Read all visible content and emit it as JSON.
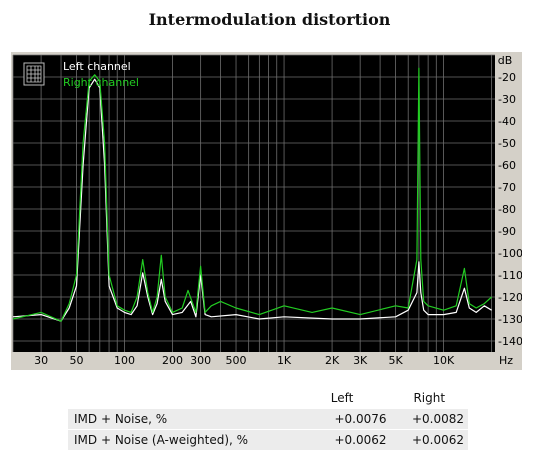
{
  "title": "Intermodulation distortion",
  "chart_data": {
    "type": "line",
    "title": "Intermodulation distortion",
    "xlabel": "Hz",
    "ylabel": "dB",
    "x_scale": "log",
    "xlim": [
      20,
      21000
    ],
    "ylim": [
      -145,
      -10
    ],
    "x_ticks": [
      {
        "value": 30,
        "label": "30"
      },
      {
        "value": 50,
        "label": "50"
      },
      {
        "value": 100,
        "label": "100"
      },
      {
        "value": 200,
        "label": "200"
      },
      {
        "value": 300,
        "label": "300"
      },
      {
        "value": 500,
        "label": "500"
      },
      {
        "value": 1000,
        "label": "1K"
      },
      {
        "value": 2000,
        "label": "2K"
      },
      {
        "value": 3000,
        "label": "3K"
      },
      {
        "value": 5000,
        "label": "5K"
      },
      {
        "value": 10000,
        "label": "10K"
      }
    ],
    "y_ticks": [
      -20,
      -30,
      -40,
      -50,
      -60,
      -70,
      -80,
      -90,
      -100,
      -110,
      -120,
      -130,
      -140
    ],
    "grid": true,
    "legend_position": "top-left",
    "series": [
      {
        "name": "Left channel",
        "color": "#ffffff",
        "points": [
          [
            20,
            -129
          ],
          [
            30,
            -128
          ],
          [
            40,
            -131
          ],
          [
            45,
            -125
          ],
          [
            50,
            -115
          ],
          [
            55,
            -60
          ],
          [
            60,
            -25
          ],
          [
            65,
            -21
          ],
          [
            70,
            -25
          ],
          [
            75,
            -60
          ],
          [
            80,
            -115
          ],
          [
            90,
            -125
          ],
          [
            100,
            -127
          ],
          [
            110,
            -128
          ],
          [
            120,
            -124
          ],
          [
            130,
            -109
          ],
          [
            140,
            -120
          ],
          [
            150,
            -128
          ],
          [
            160,
            -123
          ],
          [
            170,
            -112
          ],
          [
            180,
            -122
          ],
          [
            200,
            -128
          ],
          [
            230,
            -127
          ],
          [
            260,
            -122
          ],
          [
            280,
            -129
          ],
          [
            300,
            -110
          ],
          [
            320,
            -128
          ],
          [
            350,
            -129
          ],
          [
            500,
            -128
          ],
          [
            700,
            -130
          ],
          [
            1000,
            -129
          ],
          [
            2000,
            -130
          ],
          [
            3000,
            -130
          ],
          [
            5000,
            -129
          ],
          [
            6000,
            -126
          ],
          [
            6800,
            -118
          ],
          [
            7000,
            -104
          ],
          [
            7200,
            -118
          ],
          [
            7500,
            -126
          ],
          [
            8000,
            -128
          ],
          [
            10000,
            -128
          ],
          [
            12000,
            -127
          ],
          [
            13500,
            -116
          ],
          [
            14500,
            -125
          ],
          [
            16000,
            -127
          ],
          [
            18000,
            -124
          ],
          [
            20000,
            -126
          ]
        ]
      },
      {
        "name": "Right channel",
        "color": "#22cc22",
        "points": [
          [
            20,
            -130
          ],
          [
            30,
            -127
          ],
          [
            40,
            -131
          ],
          [
            45,
            -123
          ],
          [
            50,
            -110
          ],
          [
            55,
            -50
          ],
          [
            60,
            -22
          ],
          [
            65,
            -19
          ],
          [
            70,
            -22
          ],
          [
            75,
            -50
          ],
          [
            80,
            -110
          ],
          [
            90,
            -124
          ],
          [
            100,
            -126
          ],
          [
            110,
            -127
          ],
          [
            120,
            -120
          ],
          [
            130,
            -103
          ],
          [
            140,
            -118
          ],
          [
            150,
            -127
          ],
          [
            160,
            -120
          ],
          [
            170,
            -101
          ],
          [
            180,
            -120
          ],
          [
            200,
            -127
          ],
          [
            230,
            -125
          ],
          [
            250,
            -117
          ],
          [
            280,
            -127
          ],
          [
            300,
            -106
          ],
          [
            320,
            -127
          ],
          [
            350,
            -124
          ],
          [
            400,
            -122
          ],
          [
            500,
            -125
          ],
          [
            700,
            -128
          ],
          [
            1000,
            -124
          ],
          [
            1500,
            -127
          ],
          [
            2000,
            -125
          ],
          [
            3000,
            -128
          ],
          [
            5000,
            -124
          ],
          [
            6000,
            -125
          ],
          [
            6800,
            -103
          ],
          [
            7000,
            -16
          ],
          [
            7200,
            -103
          ],
          [
            7500,
            -122
          ],
          [
            8000,
            -124
          ],
          [
            10000,
            -126
          ],
          [
            12000,
            -124
          ],
          [
            13500,
            -107
          ],
          [
            14500,
            -123
          ],
          [
            16000,
            -125
          ],
          [
            18000,
            -123
          ],
          [
            20000,
            -120
          ]
        ]
      }
    ]
  },
  "results": {
    "columns": [
      "",
      "Left",
      "Right"
    ],
    "rows": [
      {
        "label": "IMD + Noise, %",
        "left": "+0.0076",
        "right": "+0.0082"
      },
      {
        "label": "IMD + Noise (A-weighted), %",
        "left": "+0.0062",
        "right": "+0.0062"
      }
    ]
  }
}
